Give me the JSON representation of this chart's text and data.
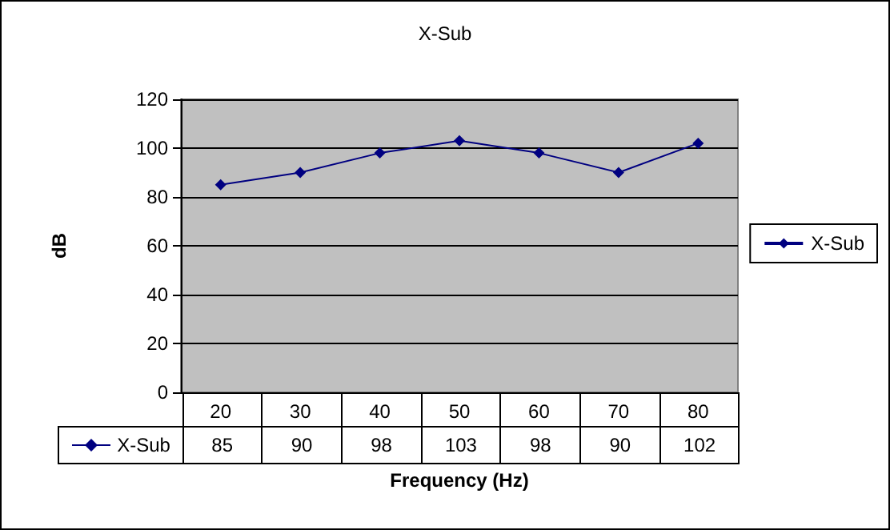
{
  "chart_data": {
    "type": "line",
    "title": "X-Sub",
    "xlabel": "Frequency (Hz)",
    "ylabel": "dB",
    "categories": [
      "20",
      "30",
      "40",
      "50",
      "60",
      "70",
      "80"
    ],
    "series": [
      {
        "name": "X-Sub",
        "color": "#000080",
        "values": [
          85,
          90,
          98,
          103,
          98,
          90,
          102
        ]
      }
    ],
    "ylim": [
      0,
      120
    ],
    "yticks": [
      0,
      20,
      40,
      60,
      80,
      100,
      120
    ],
    "grid": "y",
    "legend": "right",
    "marker": "diamond",
    "line_style": "solid",
    "data_labels": true
  }
}
